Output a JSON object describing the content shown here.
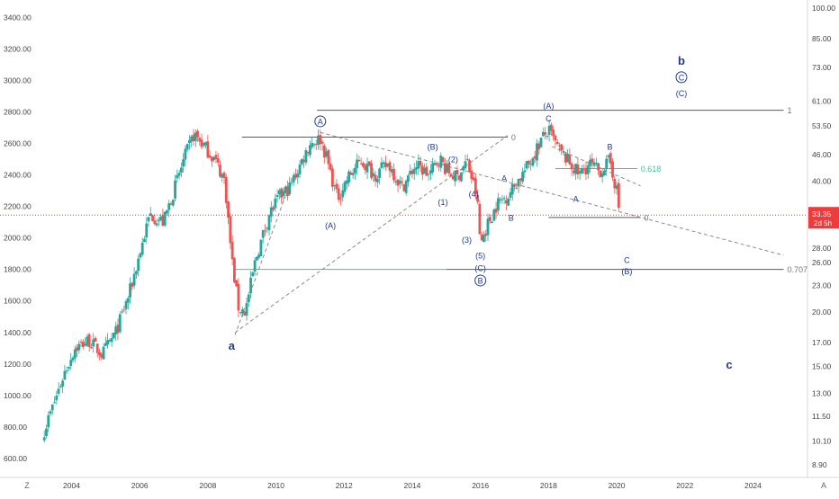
{
  "chart_data": {
    "type": "candlestick",
    "title": "",
    "xlabel": "",
    "ylabel": "",
    "left_axis": {
      "scale": "linear",
      "ticks": [
        "3400.00",
        "3200.00",
        "3000.00",
        "2800.00",
        "2600.00",
        "2400.00",
        "2200.00",
        "2000.00",
        "1800.00",
        "1600.00",
        "1400.00",
        "1200.00",
        "1000.00",
        "800.00",
        "600.00"
      ],
      "tick_values": [
        3400,
        3200,
        3000,
        2800,
        2600,
        2400,
        2200,
        2000,
        1800,
        1600,
        1400,
        1200,
        1000,
        800,
        600
      ],
      "range": [
        480,
        3510
      ]
    },
    "right_axis": {
      "scale": "log",
      "ticks": [
        "100.00",
        "85.00",
        "73.00",
        "61.00",
        "53.50",
        "46.00",
        "40.00",
        "33.35",
        "28.00",
        "26.00",
        "23.00",
        "20.00",
        "17.00",
        "15.00",
        "13.00",
        "11.50",
        "10.10",
        "8.90"
      ],
      "tick_values": [
        100,
        85,
        73,
        61,
        53.5,
        46,
        40,
        33.35,
        28,
        26,
        23,
        20,
        17,
        15,
        13,
        11.5,
        10.1,
        8.9
      ],
      "last_price": "33.35",
      "countdown": "2d 5h"
    },
    "x_axis": {
      "ticks": [
        "2004",
        "2006",
        "2008",
        "2010",
        "2012",
        "2014",
        "2016",
        "2018",
        "2020",
        "2022",
        "2024"
      ],
      "tick_values": [
        2004,
        2006,
        2008,
        2010,
        2012,
        2014,
        2016,
        2018,
        2020,
        2022,
        2024
      ],
      "range": [
        2001.9,
        2025.6
      ]
    },
    "price_path": [
      [
        2003.2,
        780
      ],
      [
        2003.5,
        960
      ],
      [
        2003.8,
        1150
      ],
      [
        2004.1,
        1300
      ],
      [
        2004.5,
        1350
      ],
      [
        2004.9,
        1260
      ],
      [
        2005.3,
        1400
      ],
      [
        2005.7,
        1650
      ],
      [
        2006.0,
        1900
      ],
      [
        2006.3,
        2150
      ],
      [
        2006.7,
        2100
      ],
      [
        2007.0,
        2300
      ],
      [
        2007.3,
        2500
      ],
      [
        2007.6,
        2660
      ],
      [
        2007.9,
        2580
      ],
      [
        2008.2,
        2500
      ],
      [
        2008.5,
        2360
      ],
      [
        2008.7,
        1870
      ],
      [
        2008.9,
        1560
      ],
      [
        2009.1,
        1530
      ],
      [
        2009.4,
        1860
      ],
      [
        2009.8,
        2150
      ],
      [
        2010.1,
        2260
      ],
      [
        2010.4,
        2320
      ],
      [
        2010.7,
        2460
      ],
      [
        2011.0,
        2600
      ],
      [
        2011.3,
        2630
      ],
      [
        2011.5,
        2500
      ],
      [
        2011.8,
        2250
      ],
      [
        2012.1,
        2380
      ],
      [
        2012.5,
        2490
      ],
      [
        2012.9,
        2400
      ],
      [
        2013.3,
        2470
      ],
      [
        2013.7,
        2320
      ],
      [
        2014.1,
        2460
      ],
      [
        2014.5,
        2400
      ],
      [
        2014.8,
        2510
      ],
      [
        2015.0,
        2430
      ],
      [
        2015.3,
        2380
      ],
      [
        2015.6,
        2490
      ],
      [
        2015.9,
        2260
      ],
      [
        2016.0,
        1960
      ],
      [
        2016.2,
        2080
      ],
      [
        2016.5,
        2220
      ],
      [
        2016.8,
        2270
      ],
      [
        2017.0,
        2330
      ],
      [
        2017.4,
        2460
      ],
      [
        2017.8,
        2630
      ],
      [
        2018.0,
        2680
      ],
      [
        2018.3,
        2560
      ],
      [
        2018.6,
        2480
      ],
      [
        2018.9,
        2400
      ],
      [
        2019.2,
        2470
      ],
      [
        2019.5,
        2420
      ],
      [
        2019.8,
        2490
      ],
      [
        2020.0,
        2300
      ],
      [
        2020.1,
        2120
      ]
    ],
    "horizontal_lines": [
      {
        "y": 2810,
        "x": [
          2011.2,
          2024.9
        ],
        "label": "1",
        "color": "#5a5a5a"
      },
      {
        "y": 2640,
        "x": [
          2009.0,
          2016.8
        ],
        "label": "0",
        "color": "#5a5a5a"
      },
      {
        "y": 2440,
        "x": [
          2018.2,
          2020.6
        ],
        "label": "0.618",
        "color": "#43c19d"
      },
      {
        "y": 2130,
        "x": [
          2018.0,
          2020.7
        ],
        "label": "0",
        "color": "#5a5a5a"
      },
      {
        "y": 1800,
        "x": [
          2008.8,
          2015.0
        ],
        "label": "",
        "color": "#43c19d"
      },
      {
        "y": 1800,
        "x": [
          2015.0,
          2024.9
        ],
        "label": "0.707",
        "color": "#5a5a5a"
      }
    ],
    "price_line": {
      "y": 2145,
      "color": "#ef3b3b"
    },
    "dashed_lines": [
      {
        "from": [
          2008.8,
          1385
        ],
        "to": [
          2010.5,
          2400
        ]
      },
      {
        "from": [
          2008.8,
          1400
        ],
        "to": [
          2016.8,
          2650
        ]
      },
      {
        "from": [
          2011.3,
          2670
        ],
        "to": [
          2024.9,
          1890
        ]
      },
      {
        "from": [
          2018.1,
          2580
        ],
        "to": [
          2020.7,
          2330
        ]
      }
    ],
    "annotations": [
      {
        "text": "a",
        "x": 2008.7,
        "y": 1290,
        "style": "bold"
      },
      {
        "text": "A",
        "x": 2011.3,
        "y": 2720,
        "style": "circle"
      },
      {
        "text": "(A)",
        "x": 2011.6,
        "y": 2060,
        "style": "normal"
      },
      {
        "text": "(B)",
        "x": 2014.6,
        "y": 2560,
        "style": "normal"
      },
      {
        "text": "(1)",
        "x": 2014.9,
        "y": 2210,
        "style": "normal"
      },
      {
        "text": "(2)",
        "x": 2015.2,
        "y": 2480,
        "style": "normal"
      },
      {
        "text": "(3)",
        "x": 2015.6,
        "y": 1970,
        "style": "normal"
      },
      {
        "text": "(4)",
        "x": 2015.8,
        "y": 2260,
        "style": "normal"
      },
      {
        "text": "(5)",
        "x": 2016.0,
        "y": 1870,
        "style": "normal"
      },
      {
        "text": "(C)",
        "x": 2016.0,
        "y": 1790,
        "style": "normal"
      },
      {
        "text": "B",
        "x": 2016.0,
        "y": 1710,
        "style": "circle"
      },
      {
        "text": "A",
        "x": 2016.7,
        "y": 2360,
        "style": "normal"
      },
      {
        "text": "B",
        "x": 2016.9,
        "y": 2110,
        "style": "normal"
      },
      {
        "text": "(A)",
        "x": 2018.0,
        "y": 2820,
        "style": "normal"
      },
      {
        "text": "C",
        "x": 2018.0,
        "y": 2740,
        "style": "normal"
      },
      {
        "text": "A",
        "x": 2018.8,
        "y": 2230,
        "style": "normal"
      },
      {
        "text": "B",
        "x": 2019.8,
        "y": 2560,
        "style": "normal"
      },
      {
        "text": "C",
        "x": 2020.3,
        "y": 1840,
        "style": "normal"
      },
      {
        "text": "(B)",
        "x": 2020.3,
        "y": 1770,
        "style": "normal"
      },
      {
        "text": "b",
        "x": 2021.9,
        "y": 3100,
        "style": "bold"
      },
      {
        "text": "C",
        "x": 2021.9,
        "y": 3000,
        "style": "circle"
      },
      {
        "text": "(C)",
        "x": 2021.9,
        "y": 2900,
        "style": "normal"
      },
      {
        "text": "c",
        "x": 2023.3,
        "y": 1170,
        "style": "bold"
      }
    ],
    "colors": {
      "up": "#26a69a",
      "down": "#ef5350",
      "label": "#1f3a93",
      "axis_text": "#444444",
      "price_tag": "#ef3b3b"
    },
    "grid": false,
    "legend": "none"
  },
  "bottom_bar": {
    "left_label": "Z",
    "right_label": "A"
  }
}
